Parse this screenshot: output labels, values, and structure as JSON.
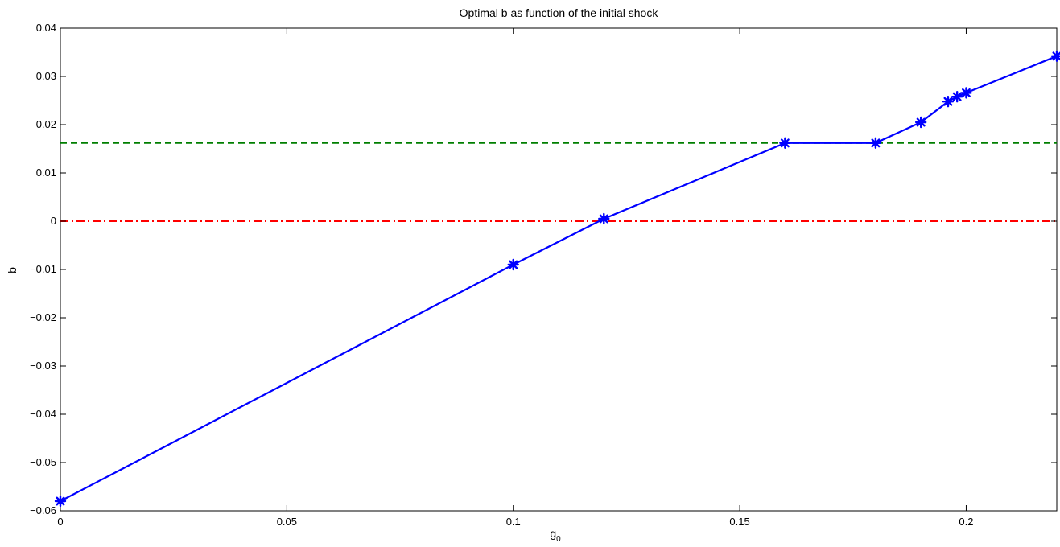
{
  "chart_data": {
    "type": "line",
    "title": "Optimal b as function of the initial shock",
    "xlabel": "g",
    "xlabel_subscript": "0",
    "ylabel": "b",
    "xlim": [
      0,
      0.22
    ],
    "ylim": [
      -0.06,
      0.04
    ],
    "x_ticks": [
      0,
      0.05,
      0.1,
      0.15,
      0.2
    ],
    "x_tick_labels": [
      "0",
      "0.05",
      "0.1",
      "0.15",
      "0.2"
    ],
    "y_ticks": [
      -0.06,
      -0.05,
      -0.04,
      -0.03,
      -0.02,
      -0.01,
      0,
      0.01,
      0.02,
      0.03,
      0.04
    ],
    "y_tick_labels": [
      "-0.06",
      "-0.05",
      "-0.04",
      "-0.03",
      "-0.02",
      "-0.01",
      "0",
      "0.01",
      "0.02",
      "0.03",
      "0.04"
    ],
    "grid": false,
    "series": [
      {
        "style": "solid-star-markers",
        "color": "#0000ff",
        "x": [
          0,
          0.1,
          0.12,
          0.16,
          0.18,
          0.19,
          0.196,
          0.198,
          0.2,
          0.22
        ],
        "y": [
          -0.058,
          -0.009,
          0.0005,
          0.0162,
          0.0162,
          0.0205,
          0.0248,
          0.0258,
          0.0266,
          0.0342
        ]
      }
    ],
    "reference_lines": [
      {
        "style": "dashed",
        "color": "#007f00",
        "y": 0.0162
      },
      {
        "style": "dash-dot",
        "color": "#ff0000",
        "y": 0
      }
    ]
  }
}
